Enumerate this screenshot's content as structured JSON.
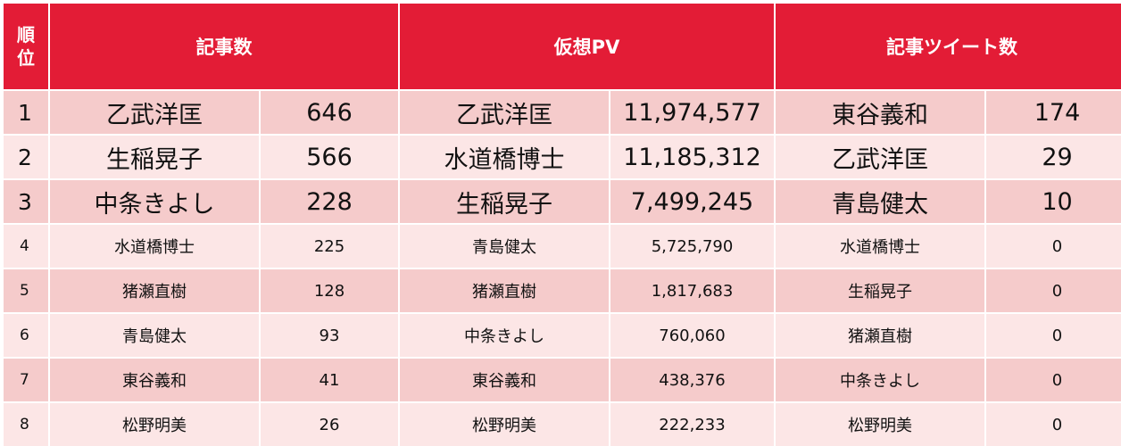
{
  "headers": {
    "rank_line1": "順",
    "rank_line2": "位",
    "articles": "記事数",
    "pv": "仮想PV",
    "tweets": "記事ツイート数"
  },
  "rows": [
    {
      "rank": "1",
      "a_name": "乙武洋匡",
      "a_val": "646",
      "p_name": "乙武洋匡",
      "p_val": "11,974,577",
      "t_name": "東谷義和",
      "t_val": "174"
    },
    {
      "rank": "2",
      "a_name": "生稲晃子",
      "a_val": "566",
      "p_name": "水道橋博士",
      "p_val": "11,185,312",
      "t_name": "乙武洋匡",
      "t_val": "29"
    },
    {
      "rank": "3",
      "a_name": "中条きよし",
      "a_val": "228",
      "p_name": "生稲晃子",
      "p_val": "7,499,245",
      "t_name": "青島健太",
      "t_val": "10"
    },
    {
      "rank": "4",
      "a_name": "水道橋博士",
      "a_val": "225",
      "p_name": "青島健太",
      "p_val": "5,725,790",
      "t_name": "水道橋博士",
      "t_val": "0"
    },
    {
      "rank": "5",
      "a_name": "猪瀬直樹",
      "a_val": "128",
      "p_name": "猪瀬直樹",
      "p_val": "1,817,683",
      "t_name": "生稲晃子",
      "t_val": "0"
    },
    {
      "rank": "6",
      "a_name": "青島健太",
      "a_val": "93",
      "p_name": "中条きよし",
      "p_val": "760,060",
      "t_name": "猪瀬直樹",
      "t_val": "0"
    },
    {
      "rank": "7",
      "a_name": "東谷義和",
      "a_val": "41",
      "p_name": "東谷義和",
      "p_val": "438,376",
      "t_name": "中条きよし",
      "t_val": "0"
    },
    {
      "rank": "8",
      "a_name": "松野明美",
      "a_val": "26",
      "p_name": "松野明美",
      "p_val": "222,233",
      "t_name": "松野明美",
      "t_val": "0"
    }
  ]
}
